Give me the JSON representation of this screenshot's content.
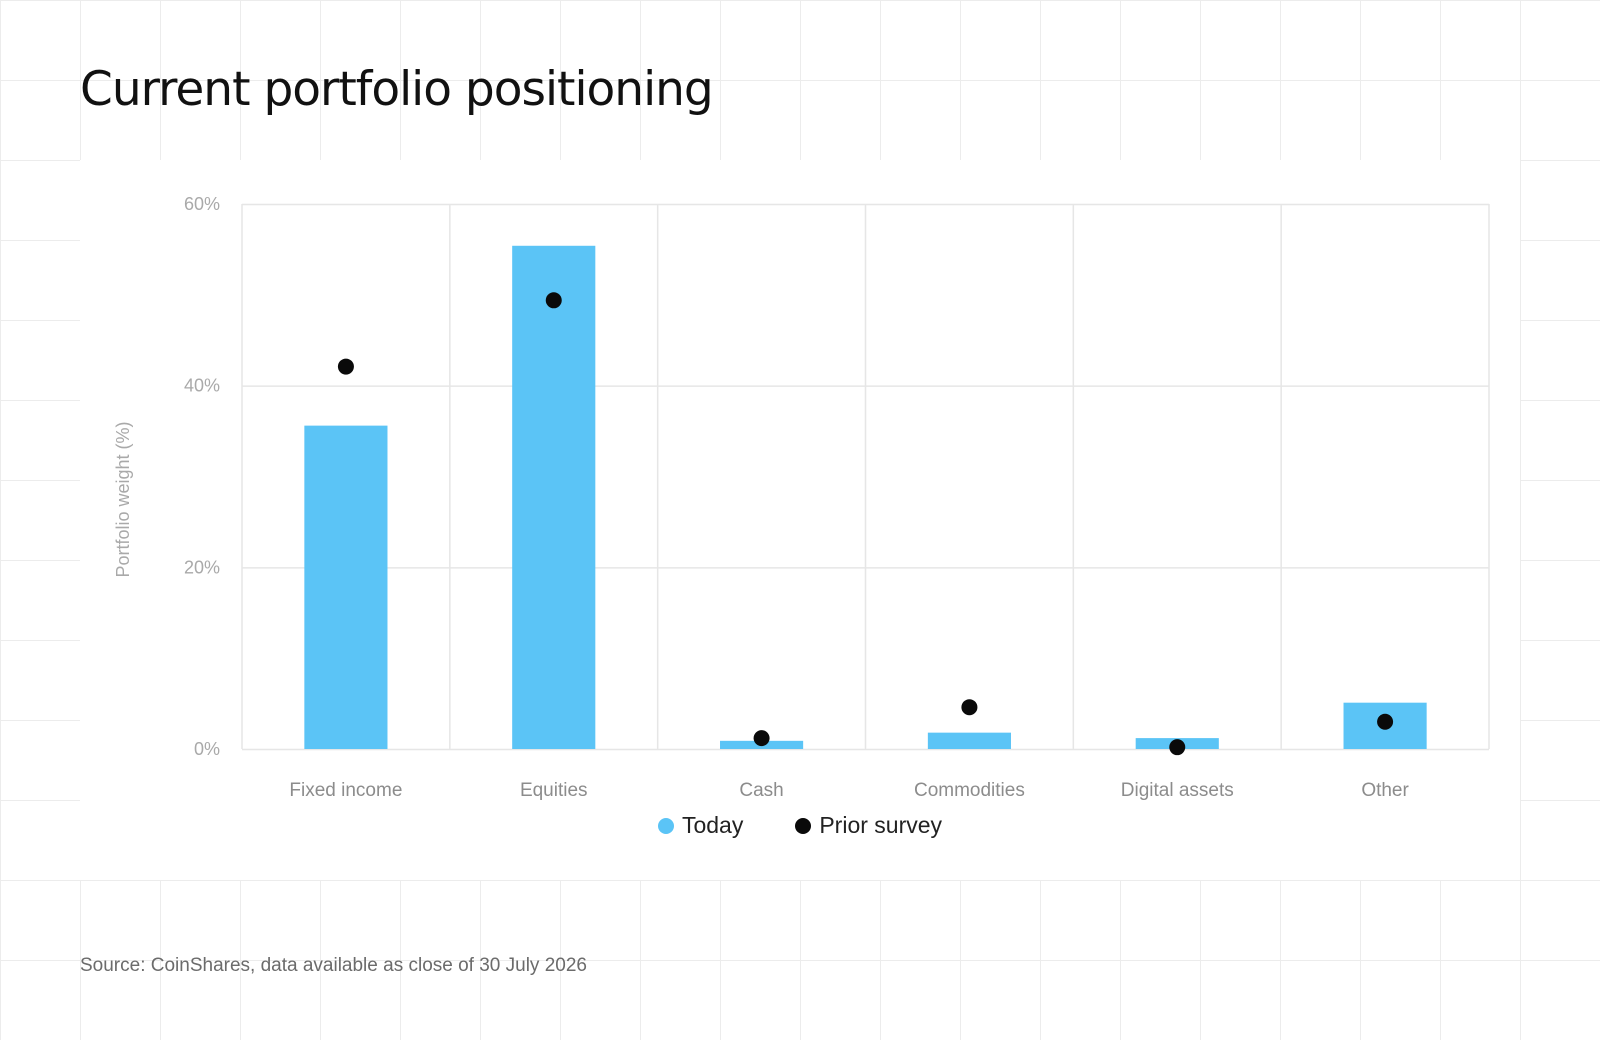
{
  "page": {
    "title": "Current portfolio positioning",
    "source": "Source: CoinShares, data available as close of 30 July 2026"
  },
  "colors": {
    "today": "#5bc4f6",
    "prior": "#0a0a0a",
    "grid": "#e6e6e6",
    "axis_text": "#a9a9a9",
    "category_text": "#8c8c8c"
  },
  "chart_data": {
    "type": "bar",
    "title": "",
    "xlabel": "",
    "ylabel": "Portfolio weight (%)",
    "ylim": [
      0,
      60
    ],
    "yticks": [
      0,
      20,
      40,
      60
    ],
    "ytick_labels": [
      "0%",
      "20%",
      "40%",
      "60%"
    ],
    "categories": [
      "Fixed income",
      "Equities",
      "Cash",
      "Commodities",
      "Digital assets",
      "Other"
    ],
    "series": [
      {
        "name": "Today",
        "kind": "bar",
        "color": "#5bc4f6",
        "values": [
          35.6,
          55.4,
          0.9,
          1.8,
          1.2,
          5.1
        ]
      },
      {
        "name": "Prior survey",
        "kind": "dot",
        "color": "#0a0a0a",
        "values": [
          42.1,
          49.4,
          1.2,
          4.6,
          0.2,
          3.0
        ]
      }
    ],
    "grid": true,
    "legend_position": "bottom-center"
  }
}
